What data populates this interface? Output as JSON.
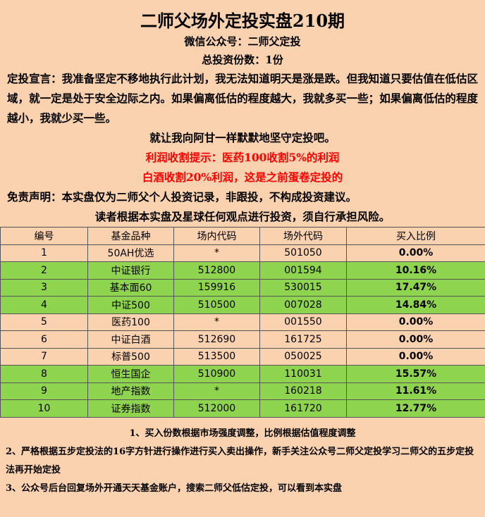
{
  "header": {
    "title": "二师父场外定投实盘210期",
    "wechat": "微信公众号：二师父定投",
    "total": "总投资份数：1份"
  },
  "declaration": {
    "text": "定投宣言：我准备坚定不移地执行此计划，我无法知道明天是涨是跌。但我知道只要估值在低估区域，就一定是处于安全边际之内。如果偏离低估的程度越大，我就多买一些；如果偏离低估的程度越小，我就少买一些。",
    "closing": "就让我向阿甘一样默默地坚守定投吧。"
  },
  "profit_tips": {
    "line1": "利润收割提示：医药100收割5%的利润",
    "line2": "白酒收割20%利润，这是之前蛋卷定投的"
  },
  "disclaimer": {
    "line1": "免责声明：本实盘仅为二师父个人投资记录，非跟投，不构成投资建议。",
    "line2": "读者根据本实盘及星球任何观点进行投资，须自行承担风险。"
  },
  "table": {
    "headers": [
      "编号",
      "基金品种",
      "场内代码",
      "场外代码",
      "买入比例"
    ],
    "rows": [
      {
        "no": "1",
        "name": "50AH优选",
        "inside": "*",
        "outside": "501050",
        "ratio": "0.00%",
        "color": "peach"
      },
      {
        "no": "2",
        "name": "中证银行",
        "inside": "512800",
        "outside": "001594",
        "ratio": "10.16%",
        "color": "green"
      },
      {
        "no": "3",
        "name": "基本面60",
        "inside": "159916",
        "outside": "530015",
        "ratio": "17.47%",
        "color": "green"
      },
      {
        "no": "4",
        "name": "中证500",
        "inside": "510500",
        "outside": "007028",
        "ratio": "14.84%",
        "color": "green"
      },
      {
        "no": "5",
        "name": "医药100",
        "inside": "*",
        "outside": "001550",
        "ratio": "0.00%",
        "color": "peach"
      },
      {
        "no": "6",
        "name": "中证白酒",
        "inside": "512690",
        "outside": "161725",
        "ratio": "0.00%",
        "color": "peach"
      },
      {
        "no": "7",
        "name": "标普500",
        "inside": "513500",
        "outside": "050025",
        "ratio": "0.00%",
        "color": "peach"
      },
      {
        "no": "8",
        "name": "恒生国企",
        "inside": "510900",
        "outside": "110031",
        "ratio": "15.57%",
        "color": "green"
      },
      {
        "no": "9",
        "name": "地产指数",
        "inside": "*",
        "outside": "160218",
        "ratio": "11.61%",
        "color": "green"
      },
      {
        "no": "10",
        "name": "证券指数",
        "inside": "512000",
        "outside": "161720",
        "ratio": "12.77%",
        "color": "green"
      }
    ]
  },
  "notes": {
    "n1": "1、买入份数根据市场强度调整，比例根据估值程度调整",
    "n2": "2、严格根据五步定投法的16字方针进行操作进行买入卖出操作，新手关注公众号二师父定投学习二师父的五步定投法再开始定投",
    "n3": "3、公众号后台回复场外开通天天基金账户，搜索二师父低估定投，可以看到本实盘"
  },
  "colors": {
    "background": "#fbd2b0",
    "green": "#8fd44f",
    "red": "#ff0000"
  }
}
